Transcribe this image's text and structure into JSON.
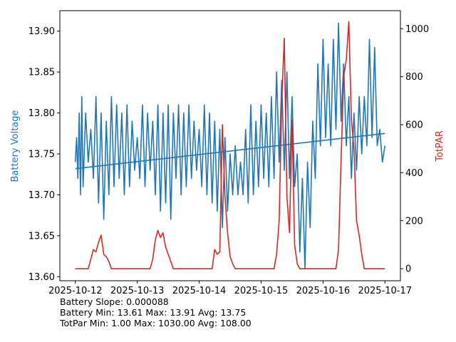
{
  "chart_data": {
    "type": "line",
    "x_ticks": [
      "2025-10-12",
      "2025-10-13",
      "2025-10-14",
      "2025-10-15",
      "2025-10-16",
      "2025-10-17"
    ],
    "xlim": [
      "2025-10-11T18:00",
      "2025-10-17T06:00"
    ],
    "left_axis": {
      "label": "Battery Voltage",
      "color": "#1f77b4",
      "ylim": [
        13.595,
        13.925
      ],
      "ticks": [
        "13.60",
        "13.65",
        "13.70",
        "13.75",
        "13.80",
        "13.85",
        "13.90"
      ]
    },
    "right_axis": {
      "label": "TotPAR",
      "color": "#d62728",
      "ylim": [
        -50,
        1075
      ],
      "ticks": [
        "0",
        "200",
        "400",
        "600",
        "800",
        "1000"
      ]
    },
    "series": [
      {
        "axis": "left",
        "color": "#1f77b4",
        "points": [
          [
            "2025-10-12T00:00",
            13.74
          ],
          [
            "2025-10-12T00:30",
            13.77
          ],
          [
            "2025-10-12T01:00",
            13.72
          ],
          [
            "2025-10-12T01:30",
            13.8
          ],
          [
            "2025-10-12T02:00",
            13.7
          ],
          [
            "2025-10-12T02:30",
            13.82
          ],
          [
            "2025-10-12T03:00",
            13.71
          ],
          [
            "2025-10-12T04:00",
            13.8
          ],
          [
            "2025-10-12T05:00",
            13.74
          ],
          [
            "2025-10-12T06:00",
            13.78
          ],
          [
            "2025-10-12T07:00",
            13.72
          ],
          [
            "2025-10-12T08:00",
            13.82
          ],
          [
            "2025-10-12T09:00",
            13.69
          ],
          [
            "2025-10-12T10:00",
            13.8
          ],
          [
            "2025-10-12T11:00",
            13.67
          ],
          [
            "2025-10-12T12:00",
            13.79
          ],
          [
            "2025-10-12T13:00",
            13.7
          ],
          [
            "2025-10-12T14:00",
            13.82
          ],
          [
            "2025-10-12T15:00",
            13.71
          ],
          [
            "2025-10-12T16:00",
            13.81
          ],
          [
            "2025-10-12T17:00",
            13.72
          ],
          [
            "2025-10-12T18:00",
            13.8
          ],
          [
            "2025-10-12T19:00",
            13.7
          ],
          [
            "2025-10-12T20:00",
            13.81
          ],
          [
            "2025-10-12T21:00",
            13.71
          ],
          [
            "2025-10-12T22:00",
            13.79
          ],
          [
            "2025-10-12T23:00",
            13.73
          ],
          [
            "2025-10-13T00:00",
            13.77
          ],
          [
            "2025-10-13T01:00",
            13.72
          ],
          [
            "2025-10-13T02:00",
            13.81
          ],
          [
            "2025-10-13T03:00",
            13.71
          ],
          [
            "2025-10-13T04:00",
            13.8
          ],
          [
            "2025-10-13T05:00",
            13.73
          ],
          [
            "2025-10-13T06:00",
            13.79
          ],
          [
            "2025-10-13T07:00",
            13.7
          ],
          [
            "2025-10-13T08:00",
            13.81
          ],
          [
            "2025-10-13T09:00",
            13.68
          ],
          [
            "2025-10-13T10:00",
            13.8
          ],
          [
            "2025-10-13T11:00",
            13.69
          ],
          [
            "2025-10-13T12:00",
            13.81
          ],
          [
            "2025-10-13T13:00",
            13.67
          ],
          [
            "2025-10-13T14:00",
            13.8
          ],
          [
            "2025-10-13T15:00",
            13.72
          ],
          [
            "2025-10-13T16:00",
            13.81
          ],
          [
            "2025-10-13T17:00",
            13.7
          ],
          [
            "2025-10-13T18:00",
            13.8
          ],
          [
            "2025-10-13T19:00",
            13.71
          ],
          [
            "2025-10-13T20:00",
            13.81
          ],
          [
            "2025-10-13T21:00",
            13.72
          ],
          [
            "2025-10-13T22:00",
            13.79
          ],
          [
            "2025-10-13T23:00",
            13.73
          ],
          [
            "2025-10-14T00:00",
            13.78
          ],
          [
            "2025-10-14T01:00",
            13.71
          ],
          [
            "2025-10-14T02:00",
            13.81
          ],
          [
            "2025-10-14T03:00",
            13.7
          ],
          [
            "2025-10-14T04:00",
            13.8
          ],
          [
            "2025-10-14T05:00",
            13.69
          ],
          [
            "2025-10-14T06:00",
            13.79
          ],
          [
            "2025-10-14T07:00",
            13.68
          ],
          [
            "2025-10-14T08:00",
            13.78
          ],
          [
            "2025-10-14T09:00",
            13.66
          ],
          [
            "2025-10-14T10:00",
            13.77
          ],
          [
            "2025-10-14T11:00",
            13.68
          ],
          [
            "2025-10-14T12:00",
            13.75
          ],
          [
            "2025-10-14T13:00",
            13.7
          ],
          [
            "2025-10-14T14:00",
            13.76
          ],
          [
            "2025-10-14T15:00",
            13.7
          ],
          [
            "2025-10-14T16:00",
            13.74
          ],
          [
            "2025-10-14T17:00",
            13.7
          ],
          [
            "2025-10-14T18:00",
            13.78
          ],
          [
            "2025-10-14T19:00",
            13.69
          ],
          [
            "2025-10-14T20:00",
            13.81
          ],
          [
            "2025-10-14T21:00",
            13.7
          ],
          [
            "2025-10-14T22:00",
            13.79
          ],
          [
            "2025-10-14T23:00",
            13.71
          ],
          [
            "2025-10-15T00:00",
            13.81
          ],
          [
            "2025-10-15T01:00",
            13.72
          ],
          [
            "2025-10-15T02:00",
            13.8
          ],
          [
            "2025-10-15T03:00",
            13.71
          ],
          [
            "2025-10-15T04:00",
            13.82
          ],
          [
            "2025-10-15T05:00",
            13.72
          ],
          [
            "2025-10-15T06:00",
            13.85
          ],
          [
            "2025-10-15T07:00",
            13.74
          ],
          [
            "2025-10-15T08:00",
            13.84
          ],
          [
            "2025-10-15T09:00",
            13.73
          ],
          [
            "2025-10-15T10:00",
            13.85
          ],
          [
            "2025-10-15T11:00",
            13.72
          ],
          [
            "2025-10-15T12:00",
            13.82
          ],
          [
            "2025-10-15T13:00",
            13.71
          ],
          [
            "2025-10-15T14:00",
            13.75
          ],
          [
            "2025-10-15T15:00",
            13.63
          ],
          [
            "2025-10-15T16:00",
            13.72
          ],
          [
            "2025-10-15T17:00",
            13.61
          ],
          [
            "2025-10-15T18:00",
            13.74
          ],
          [
            "2025-10-15T19:00",
            13.66
          ],
          [
            "2025-10-15T20:00",
            13.79
          ],
          [
            "2025-10-15T21:00",
            13.72
          ],
          [
            "2025-10-15T22:00",
            13.86
          ],
          [
            "2025-10-15T23:00",
            13.76
          ],
          [
            "2025-10-16T00:00",
            13.89
          ],
          [
            "2025-10-16T01:00",
            13.77
          ],
          [
            "2025-10-16T02:00",
            13.86
          ],
          [
            "2025-10-16T03:00",
            13.76
          ],
          [
            "2025-10-16T04:00",
            13.89
          ],
          [
            "2025-10-16T05:00",
            13.78
          ],
          [
            "2025-10-16T06:00",
            13.91
          ],
          [
            "2025-10-16T07:00",
            13.79
          ],
          [
            "2025-10-16T08:00",
            13.86
          ],
          [
            "2025-10-16T09:00",
            13.76
          ],
          [
            "2025-10-16T10:00",
            13.82
          ],
          [
            "2025-10-16T11:00",
            13.72
          ],
          [
            "2025-10-16T12:00",
            13.8
          ],
          [
            "2025-10-16T13:00",
            13.73
          ],
          [
            "2025-10-16T14:00",
            13.82
          ],
          [
            "2025-10-16T15:00",
            13.75
          ],
          [
            "2025-10-16T16:00",
            13.82
          ],
          [
            "2025-10-16T17:00",
            13.76
          ],
          [
            "2025-10-16T18:00",
            13.89
          ],
          [
            "2025-10-16T19:00",
            13.77
          ],
          [
            "2025-10-16T20:00",
            13.88
          ],
          [
            "2025-10-16T21:00",
            13.76
          ],
          [
            "2025-10-16T22:00",
            13.78
          ],
          [
            "2025-10-16T23:00",
            13.74
          ],
          [
            "2025-10-17T00:00",
            13.76
          ]
        ]
      },
      {
        "axis": "left",
        "color": "#1f77b4",
        "points": [
          [
            "2025-10-12T00:00",
            13.732
          ],
          [
            "2025-10-17T00:00",
            13.775
          ]
        ]
      },
      {
        "axis": "right",
        "color": "#d62728",
        "points": [
          [
            "2025-10-12T00:00",
            0
          ],
          [
            "2025-10-12T05:00",
            0
          ],
          [
            "2025-10-12T06:00",
            40
          ],
          [
            "2025-10-12T07:00",
            80
          ],
          [
            "2025-10-12T08:00",
            70
          ],
          [
            "2025-10-12T09:00",
            110
          ],
          [
            "2025-10-12T10:00",
            140
          ],
          [
            "2025-10-12T11:00",
            60
          ],
          [
            "2025-10-12T12:00",
            50
          ],
          [
            "2025-10-12T13:00",
            30
          ],
          [
            "2025-10-12T14:00",
            0
          ],
          [
            "2025-10-13T05:00",
            0
          ],
          [
            "2025-10-13T06:00",
            40
          ],
          [
            "2025-10-13T07:00",
            120
          ],
          [
            "2025-10-13T08:00",
            160
          ],
          [
            "2025-10-13T09:00",
            130
          ],
          [
            "2025-10-13T10:00",
            150
          ],
          [
            "2025-10-13T11:00",
            90
          ],
          [
            "2025-10-13T12:00",
            60
          ],
          [
            "2025-10-13T13:00",
            30
          ],
          [
            "2025-10-13T14:00",
            0
          ],
          [
            "2025-10-14T05:00",
            0
          ],
          [
            "2025-10-14T06:00",
            80
          ],
          [
            "2025-10-14T07:00",
            60
          ],
          [
            "2025-10-14T08:00",
            70
          ],
          [
            "2025-10-14T09:00",
            600
          ],
          [
            "2025-10-14T10:00",
            300
          ],
          [
            "2025-10-14T11:00",
            150
          ],
          [
            "2025-10-14T12:00",
            50
          ],
          [
            "2025-10-14T13:00",
            20
          ],
          [
            "2025-10-14T14:00",
            0
          ],
          [
            "2025-10-15T05:00",
            0
          ],
          [
            "2025-10-15T06:00",
            60
          ],
          [
            "2025-10-15T07:00",
            200
          ],
          [
            "2025-10-15T08:00",
            700
          ],
          [
            "2025-10-15T09:00",
            960
          ],
          [
            "2025-10-15T10:00",
            300
          ],
          [
            "2025-10-15T11:00",
            150
          ],
          [
            "2025-10-15T12:00",
            620
          ],
          [
            "2025-10-15T13:00",
            100
          ],
          [
            "2025-10-15T14:00",
            20
          ],
          [
            "2025-10-15T15:00",
            0
          ],
          [
            "2025-10-16T05:00",
            0
          ],
          [
            "2025-10-16T06:00",
            80
          ],
          [
            "2025-10-16T07:00",
            450
          ],
          [
            "2025-10-16T08:00",
            800
          ],
          [
            "2025-10-16T09:00",
            870
          ],
          [
            "2025-10-16T10:00",
            1030
          ],
          [
            "2025-10-16T11:00",
            620
          ],
          [
            "2025-10-16T12:00",
            500
          ],
          [
            "2025-10-16T13:00",
            200
          ],
          [
            "2025-10-16T14:00",
            140
          ],
          [
            "2025-10-16T15:00",
            60
          ],
          [
            "2025-10-16T16:00",
            0
          ],
          [
            "2025-10-17T00:00",
            0
          ]
        ]
      }
    ]
  },
  "summary": {
    "slope_line": "Battery Slope: 0.000088",
    "battery_line": "Battery Min: 13.61 Max: 13.91 Avg: 13.75",
    "totpar_line": "TotPar Min: 1.00 Max: 1030.00 Avg: 108.00"
  }
}
